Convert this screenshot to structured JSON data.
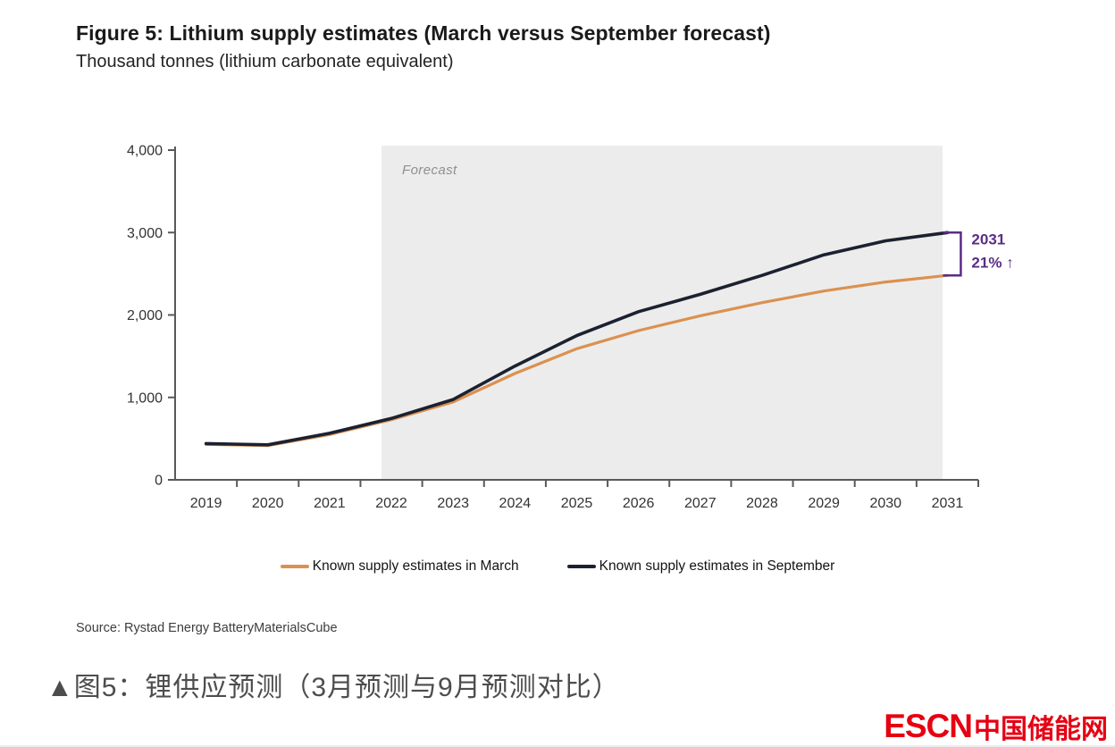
{
  "figure": {
    "title": "Figure 5: Lithium supply estimates (March versus September forecast)",
    "subtitle": "Thousand tonnes (lithium carbonate equivalent)",
    "source": "Source: Rystad Energy BatteryMaterialsCube"
  },
  "chart_data": {
    "type": "line",
    "title": "Figure 5: Lithium supply estimates (March versus September forecast)",
    "ylabel": "Thousand tonnes (lithium carbonate equivalent)",
    "xlabel": "",
    "categories": [
      "2019",
      "2020",
      "2021",
      "2022",
      "2023",
      "2024",
      "2025",
      "2026",
      "2027",
      "2028",
      "2029",
      "2030",
      "2031"
    ],
    "series": [
      {
        "name": "Known supply estimates in March",
        "color": "#DB9150",
        "values": [
          430,
          415,
          550,
          730,
          945,
          1290,
          1590,
          1810,
          1990,
          2150,
          2290,
          2400,
          2480
        ]
      },
      {
        "name": "Known supply estimates in September",
        "color": "#1B2130",
        "values": [
          440,
          425,
          565,
          745,
          975,
          1380,
          1750,
          2040,
          2250,
          2480,
          2730,
          2900,
          3000
        ]
      }
    ],
    "ylim": [
      0,
      4000
    ],
    "yticks": {
      "values": [
        0,
        1000,
        2000,
        3000,
        4000
      ],
      "labels": [
        "0",
        "1,000",
        "2,000",
        "3,000",
        "4,000"
      ]
    },
    "grid": false,
    "legend_position": "bottom",
    "forecast_band": {
      "label": "Forecast",
      "start_category": "2022",
      "end_category": "2031",
      "fill": "#ECECEC",
      "label_color": "#8f8f8f"
    },
    "annotation": {
      "line1": "2031",
      "line2": "21% ↑",
      "color": "#5B2D86"
    },
    "axis_color": "#595959",
    "tick_label_color": "#333333"
  },
  "caption": {
    "text": "▲图5：锂供应预测（3月预测与9月预测对比）"
  },
  "logo": {
    "escn": "ESCN",
    "cn": "中国储能网",
    "color": "#E60012"
  }
}
